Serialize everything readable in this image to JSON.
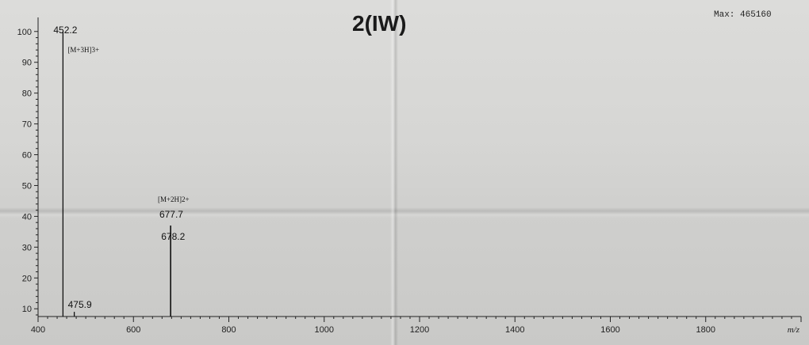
{
  "chart_data": {
    "type": "bar",
    "title": "2(IW)",
    "max_label": "Max: 465160",
    "xlabel": "m/z",
    "ylabel": "",
    "xlim": [
      400,
      2000
    ],
    "ylim": [
      8,
      102
    ],
    "x_ticks": [
      400,
      600,
      800,
      1000,
      1200,
      1400,
      1600,
      1800
    ],
    "y_ticks": [
      10,
      20,
      30,
      40,
      50,
      60,
      70,
      80,
      90,
      100
    ],
    "grid": false,
    "peaks": [
      {
        "mz": 452.2,
        "intensity": 100,
        "peak_label": "452.2",
        "ion_label": "[M+3H]3+"
      },
      {
        "mz": 475.9,
        "intensity": 9,
        "peak_label": "475.9",
        "ion_label": ""
      },
      {
        "mz": 677.7,
        "intensity": 37,
        "peak_label": "677.7",
        "ion_label": "[M+2H]2+"
      },
      {
        "mz": 678.2,
        "intensity": 37,
        "peak_label": "678.2",
        "ion_label": ""
      }
    ]
  }
}
